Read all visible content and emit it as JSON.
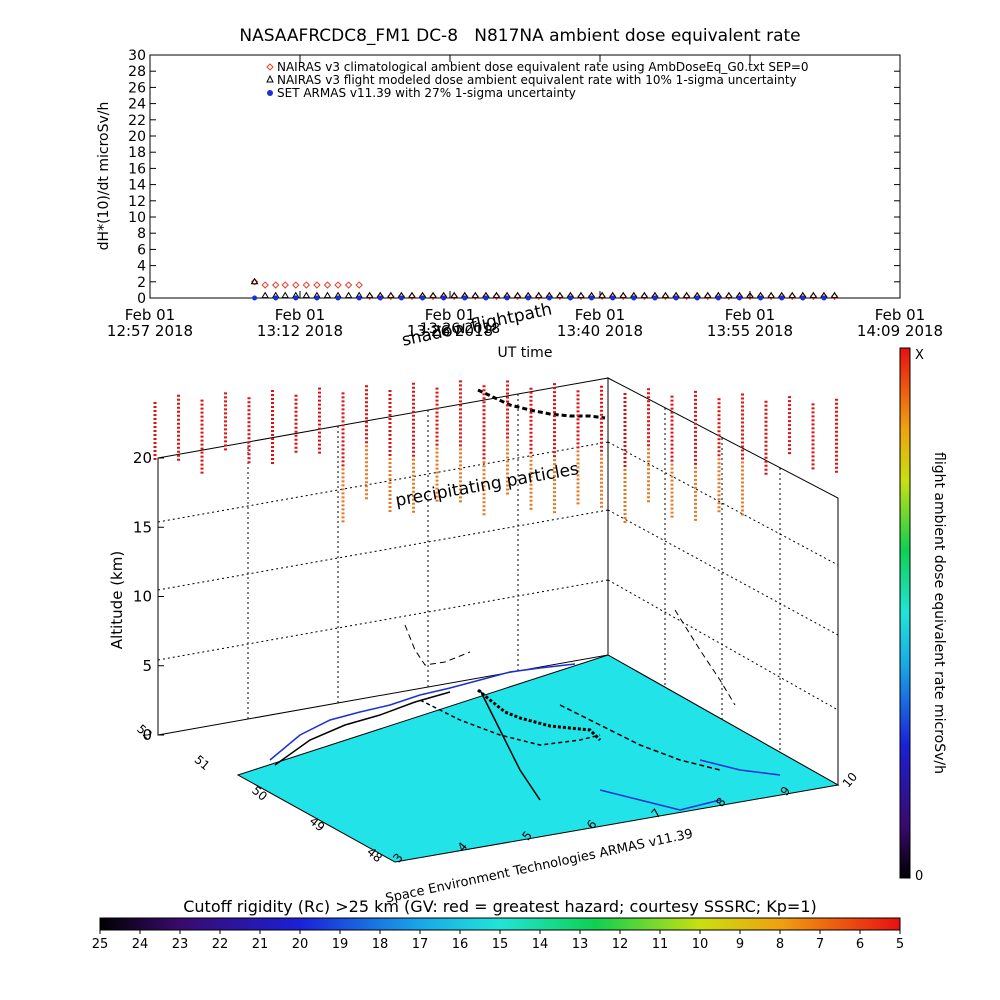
{
  "chart_data": [
    {
      "type": "scatter",
      "title": "NASAAFRCDC8_FM1 DC-8   N817NA ambient dose equivalent rate",
      "ylabel": "dH*(10)/dt microSv/h",
      "xlabel": "UT time",
      "ylim": [
        0,
        30
      ],
      "y_ticks": [
        "0",
        "2",
        "4",
        "6",
        "8",
        "10",
        "12",
        "14",
        "16",
        "18",
        "20",
        "22",
        "24",
        "26",
        "28",
        "30"
      ],
      "x_ticks": [
        {
          "line1": "Feb 01",
          "line2": "12:57 2018",
          "minutes": 0
        },
        {
          "line1": "Feb 01",
          "line2": "13:12 2018",
          "minutes": 14.2
        },
        {
          "line1": "Feb 01",
          "line2": "13:26 2018",
          "minutes": 28.4
        },
        {
          "line1": "Feb 01",
          "line2": "13:40 2018",
          "minutes": 42.6
        },
        {
          "line1": "Feb 01",
          "line2": "13:55 2018",
          "minutes": 56.8
        },
        {
          "line1": "Feb 01",
          "line2": "14:09 2018",
          "minutes": 71.0
        }
      ],
      "legend_position": "top-center",
      "series": [
        {
          "name": "NAIRAS v3 climatological ambient dose equivalent rate using AmbDoseEq_G0.txt SEP=0",
          "marker": "diamond",
          "color": "#e8402a",
          "x_minutes": [
            9.9,
            10.9,
            11.9,
            12.8,
            13.8,
            14.8,
            15.8,
            16.8,
            17.8,
            18.8,
            19.8,
            20.8,
            21.8,
            22.8,
            23.8,
            24.8,
            25.8,
            26.8,
            27.8,
            28.8,
            29.8,
            30.8,
            31.8,
            32.8,
            33.8,
            34.8,
            35.8,
            36.8,
            37.8,
            38.8,
            39.8,
            40.8,
            41.8,
            42.8,
            43.8,
            44.8,
            45.8,
            46.8,
            47.8,
            48.8,
            49.8,
            50.8,
            51.8,
            52.8,
            53.8,
            54.8,
            55.8,
            56.8,
            57.8,
            58.8,
            59.8,
            60.8,
            61.8,
            62.8,
            63.8,
            64.8
          ],
          "y": [
            2.0,
            1.6,
            1.6,
            1.6,
            1.6,
            1.6,
            1.6,
            1.6,
            1.6,
            1.6,
            1.6,
            0.2,
            0.2,
            0.2,
            0.2,
            0.2,
            0.2,
            0.2,
            0.2,
            0.2,
            0.2,
            0.2,
            0.2,
            0.2,
            0.2,
            0.2,
            0.2,
            0.2,
            0.2,
            0.2,
            0.2,
            0.2,
            0.2,
            0.2,
            0.2,
            0.2,
            0.2,
            0.2,
            0.2,
            0.2,
            0.2,
            0.2,
            0.2,
            0.2,
            0.2,
            0.2,
            0.2,
            0.2,
            0.2,
            0.2,
            0.2,
            0.2,
            0.2,
            0.2,
            0.2,
            0.2
          ]
        },
        {
          "name": "NAIRAS v3 flight modeled dose ambient equivalent rate with 10% 1-sigma uncertainty",
          "marker": "triangle",
          "color": "#000000",
          "x_minutes": [
            9.9,
            10.9,
            11.9,
            12.8,
            13.8,
            14.8,
            15.8,
            16.8,
            17.8,
            18.8,
            19.8,
            20.8,
            21.8,
            22.8,
            23.8,
            24.8,
            25.8,
            26.8,
            27.8,
            28.8,
            29.8,
            30.8,
            31.8,
            32.8,
            33.8,
            34.8,
            35.8,
            36.8,
            37.8,
            38.8,
            39.8,
            40.8,
            41.8,
            42.8,
            43.8,
            44.8,
            45.8,
            46.8,
            47.8,
            48.8,
            49.8,
            50.8,
            51.8,
            52.8,
            53.8,
            54.8,
            55.8,
            56.8,
            57.8,
            58.8,
            59.8,
            60.8,
            61.8,
            62.8,
            63.8,
            64.8
          ],
          "y": [
            2.0,
            0.3,
            0.3,
            0.3,
            0.3,
            0.3,
            0.3,
            0.3,
            0.3,
            0.3,
            0.3,
            0.3,
            0.3,
            0.3,
            0.3,
            0.3,
            0.3,
            0.3,
            0.3,
            0.3,
            0.3,
            0.3,
            0.3,
            0.3,
            0.3,
            0.3,
            0.3,
            0.3,
            0.3,
            0.3,
            0.3,
            0.3,
            0.3,
            0.3,
            0.3,
            0.3,
            0.3,
            0.3,
            0.3,
            0.3,
            0.3,
            0.3,
            0.3,
            0.3,
            0.3,
            0.3,
            0.3,
            0.3,
            0.3,
            0.3,
            0.3,
            0.3,
            0.3,
            0.3,
            0.3,
            0.3
          ]
        },
        {
          "name": "SET ARMAS v11.39 with 27% 1-sigma uncertainty",
          "marker": "circle",
          "color": "#1b2fd6",
          "x_minutes": [
            9.9,
            11.9,
            13.8,
            15.8,
            17.8,
            19.8,
            21.8,
            23.8,
            25.8,
            27.8,
            29.8,
            31.8,
            33.8,
            35.8,
            37.8,
            39.8,
            41.8,
            43.8,
            45.8,
            47.8,
            49.8,
            51.8,
            53.8,
            55.8,
            57.8,
            59.8,
            61.8,
            63.8
          ],
          "y": [
            0,
            0,
            0,
            0,
            0,
            0,
            0,
            0,
            0,
            0,
            0,
            0,
            0,
            0,
            0,
            0,
            0,
            0,
            0,
            0,
            0,
            0,
            0,
            0,
            0,
            0,
            0,
            0
          ]
        }
      ]
    },
    {
      "type": "heatmap",
      "title": "",
      "zlabel": "Altitude (km)",
      "z_ticks": [
        "0",
        "5",
        "10",
        "15",
        "20"
      ],
      "lon_ticks": [
        "3",
        "4",
        "5",
        "6",
        "7",
        "8",
        "9",
        "10"
      ],
      "lat_ticks": [
        "48",
        "49",
        "50",
        "51",
        "52"
      ],
      "annotations": [
        "shadow flightpath",
        "precipitating particles",
        "Space Environment Technologies ARMAS v11.39"
      ],
      "map_fill": "#22e4e8"
    }
  ],
  "overlay_text": {
    "shadow_flightpath_behind": "13:26 2018"
  },
  "colorbar_right": {
    "label": "flight ambient dose equivalent rate microSv/h",
    "top": "X",
    "bottom": "0"
  },
  "colorbar_bottom": {
    "label": "Cutoff rigidity (Rc) >25 km (GV: red = greatest hazard; courtesy SSSRC; Kp=1)",
    "ticks": [
      "25",
      "24",
      "23",
      "22",
      "21",
      "20",
      "19",
      "18",
      "17",
      "16",
      "15",
      "14",
      "13",
      "12",
      "11",
      "10",
      "9",
      "8",
      "7",
      "6",
      "5"
    ]
  }
}
